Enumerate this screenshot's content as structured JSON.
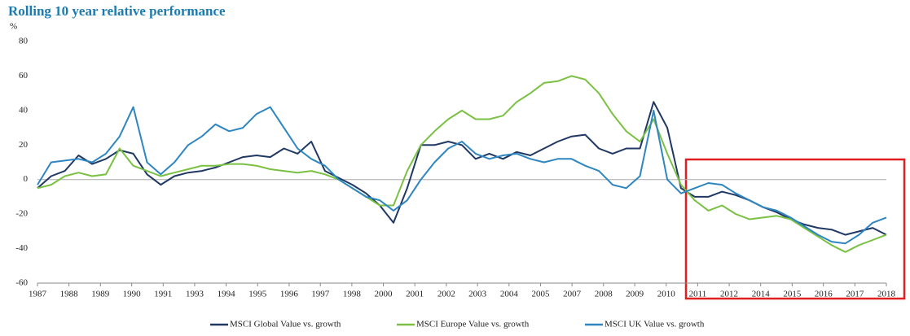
{
  "chart_data": {
    "type": "line",
    "title": "Rolling 10 year relative performance",
    "y_label": "%",
    "x": [
      1987.0,
      1987.5,
      1988.0,
      1988.5,
      1989.0,
      1989.5,
      1990.0,
      1990.5,
      1991.0,
      1991.5,
      1992.0,
      1992.5,
      1993.0,
      1993.5,
      1994.0,
      1994.5,
      1995.0,
      1995.5,
      1996.0,
      1996.5,
      1997.0,
      1997.5,
      1998.0,
      1998.5,
      1999.0,
      1999.5,
      2000.0,
      2000.5,
      2001.0,
      2001.5,
      2002.0,
      2002.5,
      2003.0,
      2003.5,
      2004.0,
      2004.5,
      2005.0,
      2005.5,
      2006.0,
      2006.5,
      2007.0,
      2007.5,
      2008.0,
      2008.5,
      2009.0,
      2009.5,
      2010.0,
      2010.5,
      2011.0,
      2011.5,
      2012.0,
      2012.5,
      2013.0,
      2013.5,
      2014.0,
      2014.5,
      2015.0,
      2015.5,
      2016.0,
      2016.5,
      2017.0,
      2017.5,
      2018.0
    ],
    "series": [
      {
        "name": "MSCI Global Value vs. growth",
        "color": "#1f3864",
        "values": [
          -5,
          2,
          5,
          14,
          9,
          12,
          17,
          15,
          3,
          -3,
          2,
          4,
          5,
          7,
          10,
          13,
          14,
          13,
          18,
          15,
          22,
          5,
          1,
          -3,
          -8,
          -15,
          -25,
          -5,
          20,
          20,
          22,
          20,
          12,
          15,
          12,
          16,
          14,
          18,
          22,
          25,
          26,
          18,
          15,
          18,
          18,
          45,
          30,
          -5,
          -10,
          -10,
          -7,
          -9,
          -12,
          -16,
          -19,
          -23,
          -26,
          -28,
          -29,
          -32,
          -30,
          -28,
          -32
        ]
      },
      {
        "name": "MSCI Europe Value vs. growth",
        "color": "#7ac143",
        "values": [
          -5,
          -3,
          2,
          4,
          2,
          3,
          18,
          8,
          5,
          2,
          4,
          6,
          8,
          8,
          9,
          9,
          8,
          6,
          5,
          4,
          5,
          3,
          0,
          -5,
          -10,
          -15,
          -15,
          5,
          20,
          28,
          35,
          40,
          35,
          35,
          37,
          45,
          50,
          56,
          57,
          60,
          58,
          50,
          38,
          28,
          22,
          35,
          15,
          -3,
          -12,
          -18,
          -15,
          -20,
          -23,
          -22,
          -21,
          -23,
          -28,
          -33,
          -38,
          -42,
          -38,
          -35,
          -32
        ]
      },
      {
        "name": "MSCI UK Value vs. growth",
        "color": "#2e86c1",
        "values": [
          -3,
          10,
          11,
          12,
          10,
          15,
          25,
          42,
          10,
          3,
          10,
          20,
          25,
          32,
          28,
          30,
          38,
          42,
          30,
          18,
          12,
          8,
          0,
          -5,
          -10,
          -12,
          -18,
          -12,
          0,
          10,
          18,
          22,
          15,
          12,
          14,
          15,
          12,
          10,
          12,
          12,
          8,
          5,
          -3,
          -5,
          2,
          40,
          0,
          -8,
          -5,
          -2,
          -3,
          -8,
          -12,
          -16,
          -18,
          -22,
          -27,
          -32,
          -36,
          -37,
          -32,
          -25,
          -22
        ]
      }
    ],
    "xlim": [
      1987,
      2018
    ],
    "xticks": [
      {
        "value": 1987,
        "label": "1987"
      },
      {
        "value": 1988.15,
        "label": "1988"
      },
      {
        "value": 1989.3,
        "label": "1989"
      },
      {
        "value": 1990.44,
        "label": "1990"
      },
      {
        "value": 1991.59,
        "label": "1991"
      },
      {
        "value": 1992.74,
        "label": "1993"
      },
      {
        "value": 1993.89,
        "label": "1994"
      },
      {
        "value": 1995.04,
        "label": "1995"
      },
      {
        "value": 1996.19,
        "label": "1996"
      },
      {
        "value": 1997.33,
        "label": "1997"
      },
      {
        "value": 1998.48,
        "label": "1998"
      },
      {
        "value": 1999.63,
        "label": "2000"
      },
      {
        "value": 2000.78,
        "label": "2001"
      },
      {
        "value": 2001.93,
        "label": "2002"
      },
      {
        "value": 2003.07,
        "label": "2003"
      },
      {
        "value": 2004.22,
        "label": "2004"
      },
      {
        "value": 2005.37,
        "label": "2005"
      },
      {
        "value": 2006.52,
        "label": "2007"
      },
      {
        "value": 2007.67,
        "label": "2008"
      },
      {
        "value": 2008.81,
        "label": "2009"
      },
      {
        "value": 2009.96,
        "label": "2010"
      },
      {
        "value": 2011.11,
        "label": "2011"
      },
      {
        "value": 2012.26,
        "label": "2012"
      },
      {
        "value": 2013.41,
        "label": "2014"
      },
      {
        "value": 2014.56,
        "label": "2015"
      },
      {
        "value": 2015.7,
        "label": "2016"
      },
      {
        "value": 2016.85,
        "label": "2017"
      },
      {
        "value": 2018,
        "label": "2018"
      }
    ],
    "ylim": [
      -60,
      80
    ],
    "yticks": [
      -60,
      -40,
      -20,
      0,
      20,
      40,
      60,
      80
    ],
    "legend": "bottom"
  }
}
